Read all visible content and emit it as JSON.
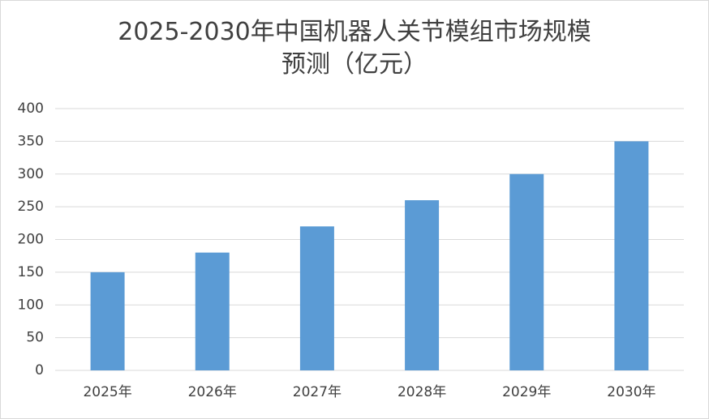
{
  "chart_data": {
    "type": "bar",
    "title": "2025-2030年中国机器人关节模组市场规模预测（亿元）",
    "categories": [
      "2025年",
      "2026年",
      "2027年",
      "2028年",
      "2029年",
      "2030年"
    ],
    "values": [
      150,
      180,
      220,
      260,
      300,
      350
    ],
    "color": "#5b9bd5",
    "ylim": [
      0,
      400
    ],
    "yticks": [
      0,
      50,
      100,
      150,
      200,
      250,
      300,
      350,
      400
    ],
    "grid": true
  }
}
